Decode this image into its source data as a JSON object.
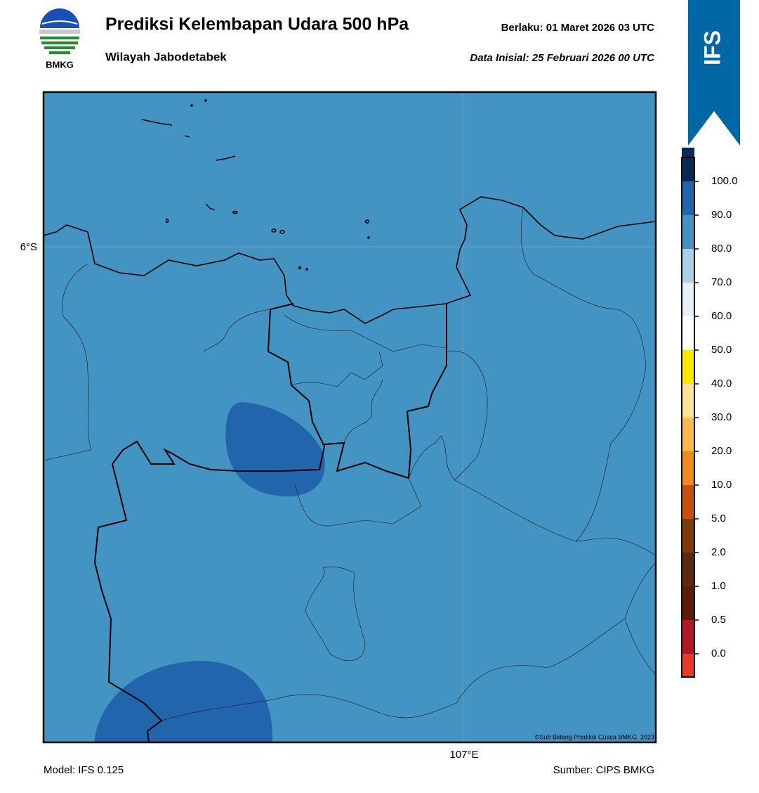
{
  "header": {
    "title": "Prediksi Kelembapan Udara 500 hPa",
    "subtitle": "Wilayah Jabodetabek",
    "valid": "Berlaku:  01 Maret 2026 03 UTC",
    "init": "Data Inisial:  25 Februari 2026 00 UTC",
    "logo": "BMKG",
    "model_tag": "IFS"
  },
  "map": {
    "lat_label": "6°S",
    "lon_label": "107°E",
    "copyright": "©Sub Bidang Prediksi Cuaca BMKG, 2023",
    "field_color": "#4393c3",
    "high_color": "#2166ac"
  },
  "colorbar": {
    "labels": [
      "0.0",
      "0.5",
      "1.0",
      "2.0",
      "5.0",
      "10.0",
      "20.0",
      "30.0",
      "40.0",
      "50.0",
      "60.0",
      "70.0",
      "80.0",
      "90.0",
      "100.0"
    ],
    "colors": [
      "#e8392a",
      "#b2182b",
      "#5c1a0b",
      "#5a2a10",
      "#7f3b08",
      "#c9500a",
      "#f08c1e",
      "#fdb94e",
      "#fde29a",
      "#ffe600",
      "#ffffff",
      "#e6eff6",
      "#a9d0e4",
      "#4393c3",
      "#2166ac",
      "#0a2a55",
      "#2d0a4e"
    ]
  },
  "footer": {
    "model": "Model: IFS 0.125",
    "source": "Sumber: CIPS BMKG"
  }
}
